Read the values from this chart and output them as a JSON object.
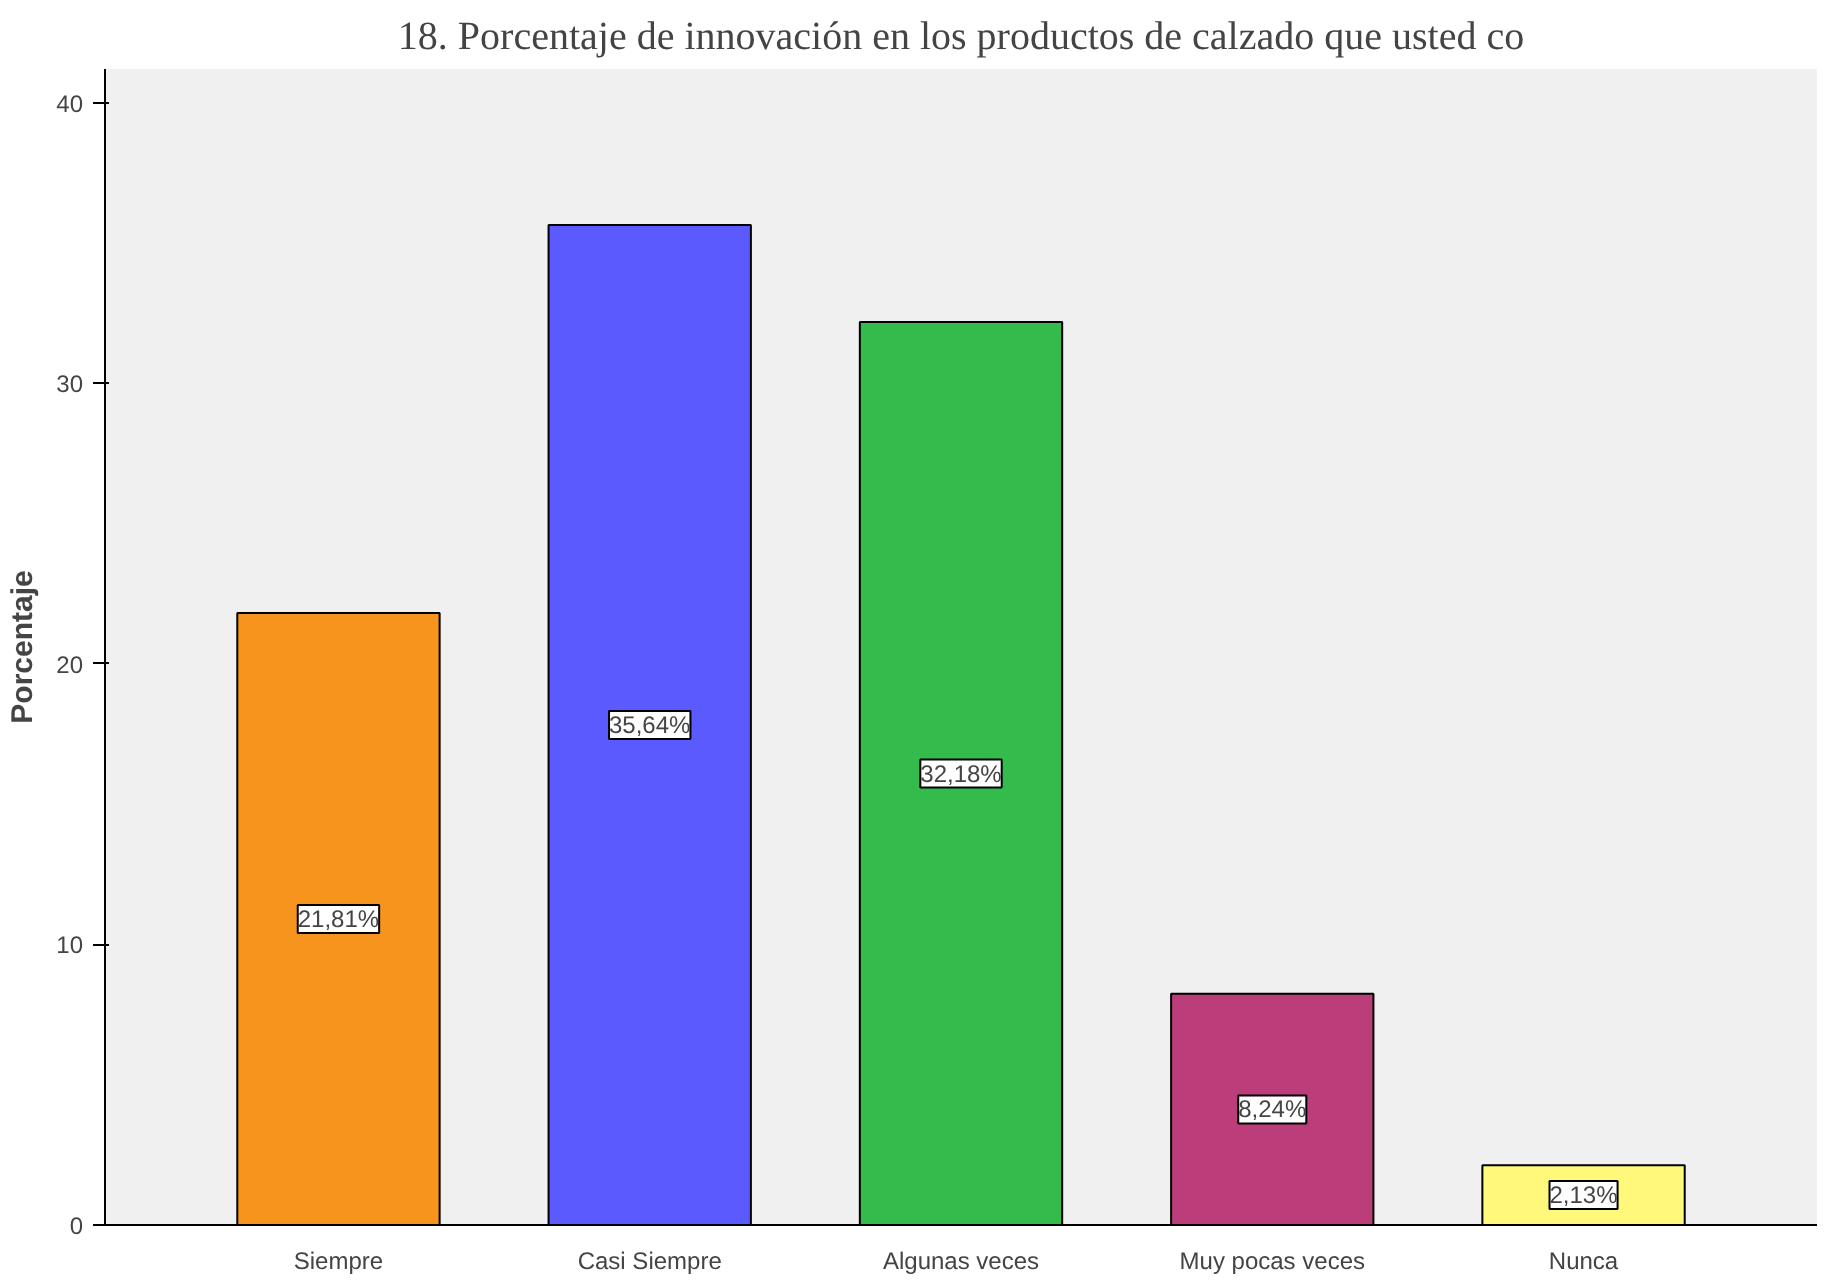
{
  "chart_data": {
    "type": "bar",
    "title": "18. Porcentaje de innovación en los productos de calzado que usted co",
    "ylabel": "Porcentaje",
    "categories": [
      "Siempre",
      "Casi Siempre",
      "Algunas veces",
      "Muy pocas veces",
      "Nunca"
    ],
    "values": [
      21.81,
      35.64,
      32.18,
      8.24,
      2.13
    ],
    "colors": [
      "#f7941d",
      "#5a5aff",
      "#33bb4c",
      "#bb3d7a",
      "#fff87a"
    ],
    "value_labels": [
      "21,81%",
      "35,64%",
      "32,18%",
      "8,24%",
      "2,13%"
    ],
    "ylim": [
      0,
      41.2
    ],
    "yticks": [
      0,
      10,
      20,
      30,
      40
    ],
    "grid": false
  }
}
